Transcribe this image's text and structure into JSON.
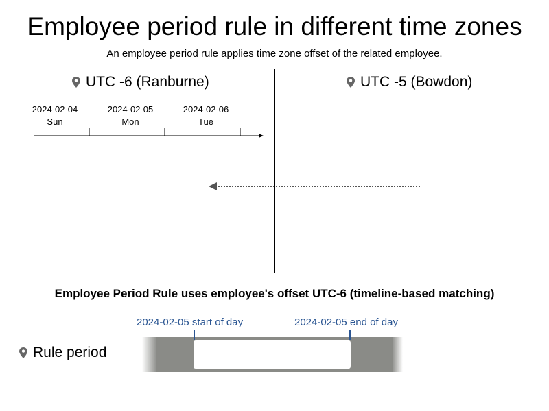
{
  "header": {
    "title": "Employee period rule in different time zones",
    "subtitle": "An employee period rule applies time zone offset of the related employee."
  },
  "zones": {
    "left": {
      "label": "UTC -6 (Ranburne)",
      "icon": "location-pin-icon"
    },
    "right": {
      "label": "UTC -5 (Bowdon)",
      "icon": "location-pin-icon"
    }
  },
  "timeline": {
    "days": [
      {
        "date": "2024-02-04",
        "weekday": "Sun"
      },
      {
        "date": "2024-02-05",
        "weekday": "Mon"
      },
      {
        "date": "2024-02-06",
        "weekday": "Tue"
      }
    ]
  },
  "caption": "Employee Period Rule uses employee's offset UTC-6 (timeline-based matching)",
  "markers": {
    "start": "2024-02-05 start of day",
    "end": "2024-02-05 end of day"
  },
  "rule": {
    "label": "Rule period",
    "icon": "location-pin-icon"
  },
  "colors": {
    "marker": "#2a5592",
    "band": "#8a8b87",
    "divider": "#000000"
  }
}
